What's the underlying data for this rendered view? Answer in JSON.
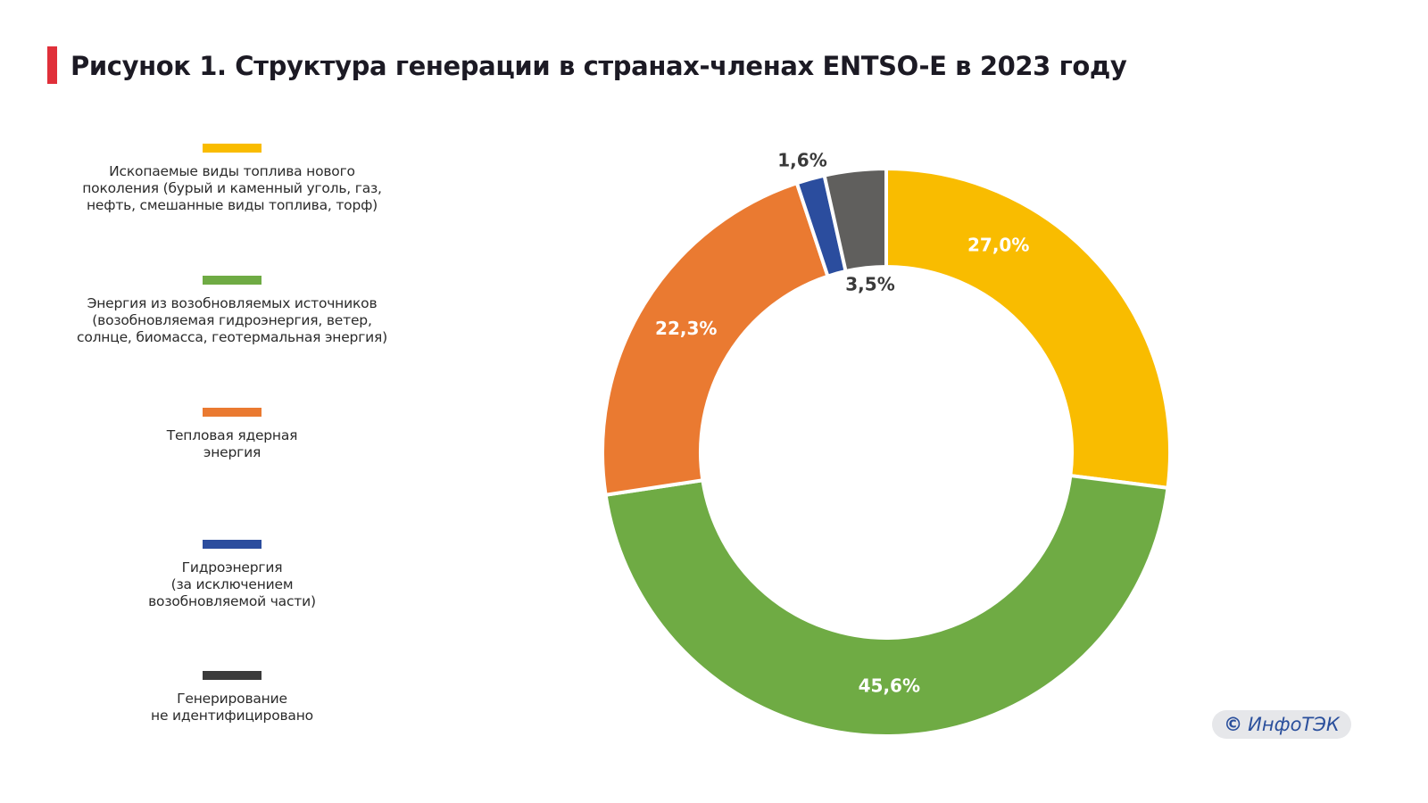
{
  "header": {
    "title": "Рисунок 1. Структура генерации в странах-членах ENTSO-E в 2023 году",
    "accent_color": "#e0303a"
  },
  "watermark": {
    "symbol": "©",
    "text": "ИнфоТЭК"
  },
  "chart_data": {
    "type": "pie",
    "variant": "donut",
    "title": "Рисунок 1. Структура генерации в странах-членах ENTSO-E в 2023 году",
    "unit": "%",
    "start": "12 o'clock, clockwise",
    "legend_position": "left",
    "categories": [
      "Ископаемые виды топлива нового поколения (бурый и каменный уголь, газ, нефть, смешанные виды топлива, торф)",
      "Энергия из возобновляемых источников (возобновляемая гидроэнергия, ветер, солнце, биомасса, геотермальная энергия)",
      "Тепловая ядерная энергия",
      "Гидроэнергия (за исключением возобновляемой части)",
      "Генерирование не идентифицировано"
    ],
    "values": [
      27.0,
      45.6,
      22.3,
      1.6,
      3.5
    ],
    "labels": [
      "27,0%",
      "45,6%",
      "22,3%",
      "1,6%",
      "3,5%"
    ],
    "colors": [
      "#f9bc00",
      "#6fab44",
      "#ea7a31",
      "#2b4d9e",
      "#605f5d"
    ],
    "slice_order": [
      0,
      1,
      2,
      3,
      4
    ]
  },
  "legend": {
    "items": [
      {
        "label": "Ископаемые виды топлива нового\nпоколения (бурый и каменный уголь, газ,\nнефть, смешанные виды топлива, торф)",
        "color": "#f9bc00"
      },
      {
        "label": "Энергия из возобновляемых источников\n(возобновляемая гидроэнергия, ветер,\nсолнце, биомасса, геотермальная энергия)",
        "color": "#6fab44"
      },
      {
        "label": "Тепловая ядерная\nэнергия",
        "color": "#ea7a31"
      },
      {
        "label": "Гидроэнергия\n(за исключением\nвозобновляемой части)",
        "color": "#2b4d9e"
      },
      {
        "label": "Генерирование\nне идентифицировано",
        "color": "#3a3a3a"
      }
    ]
  }
}
